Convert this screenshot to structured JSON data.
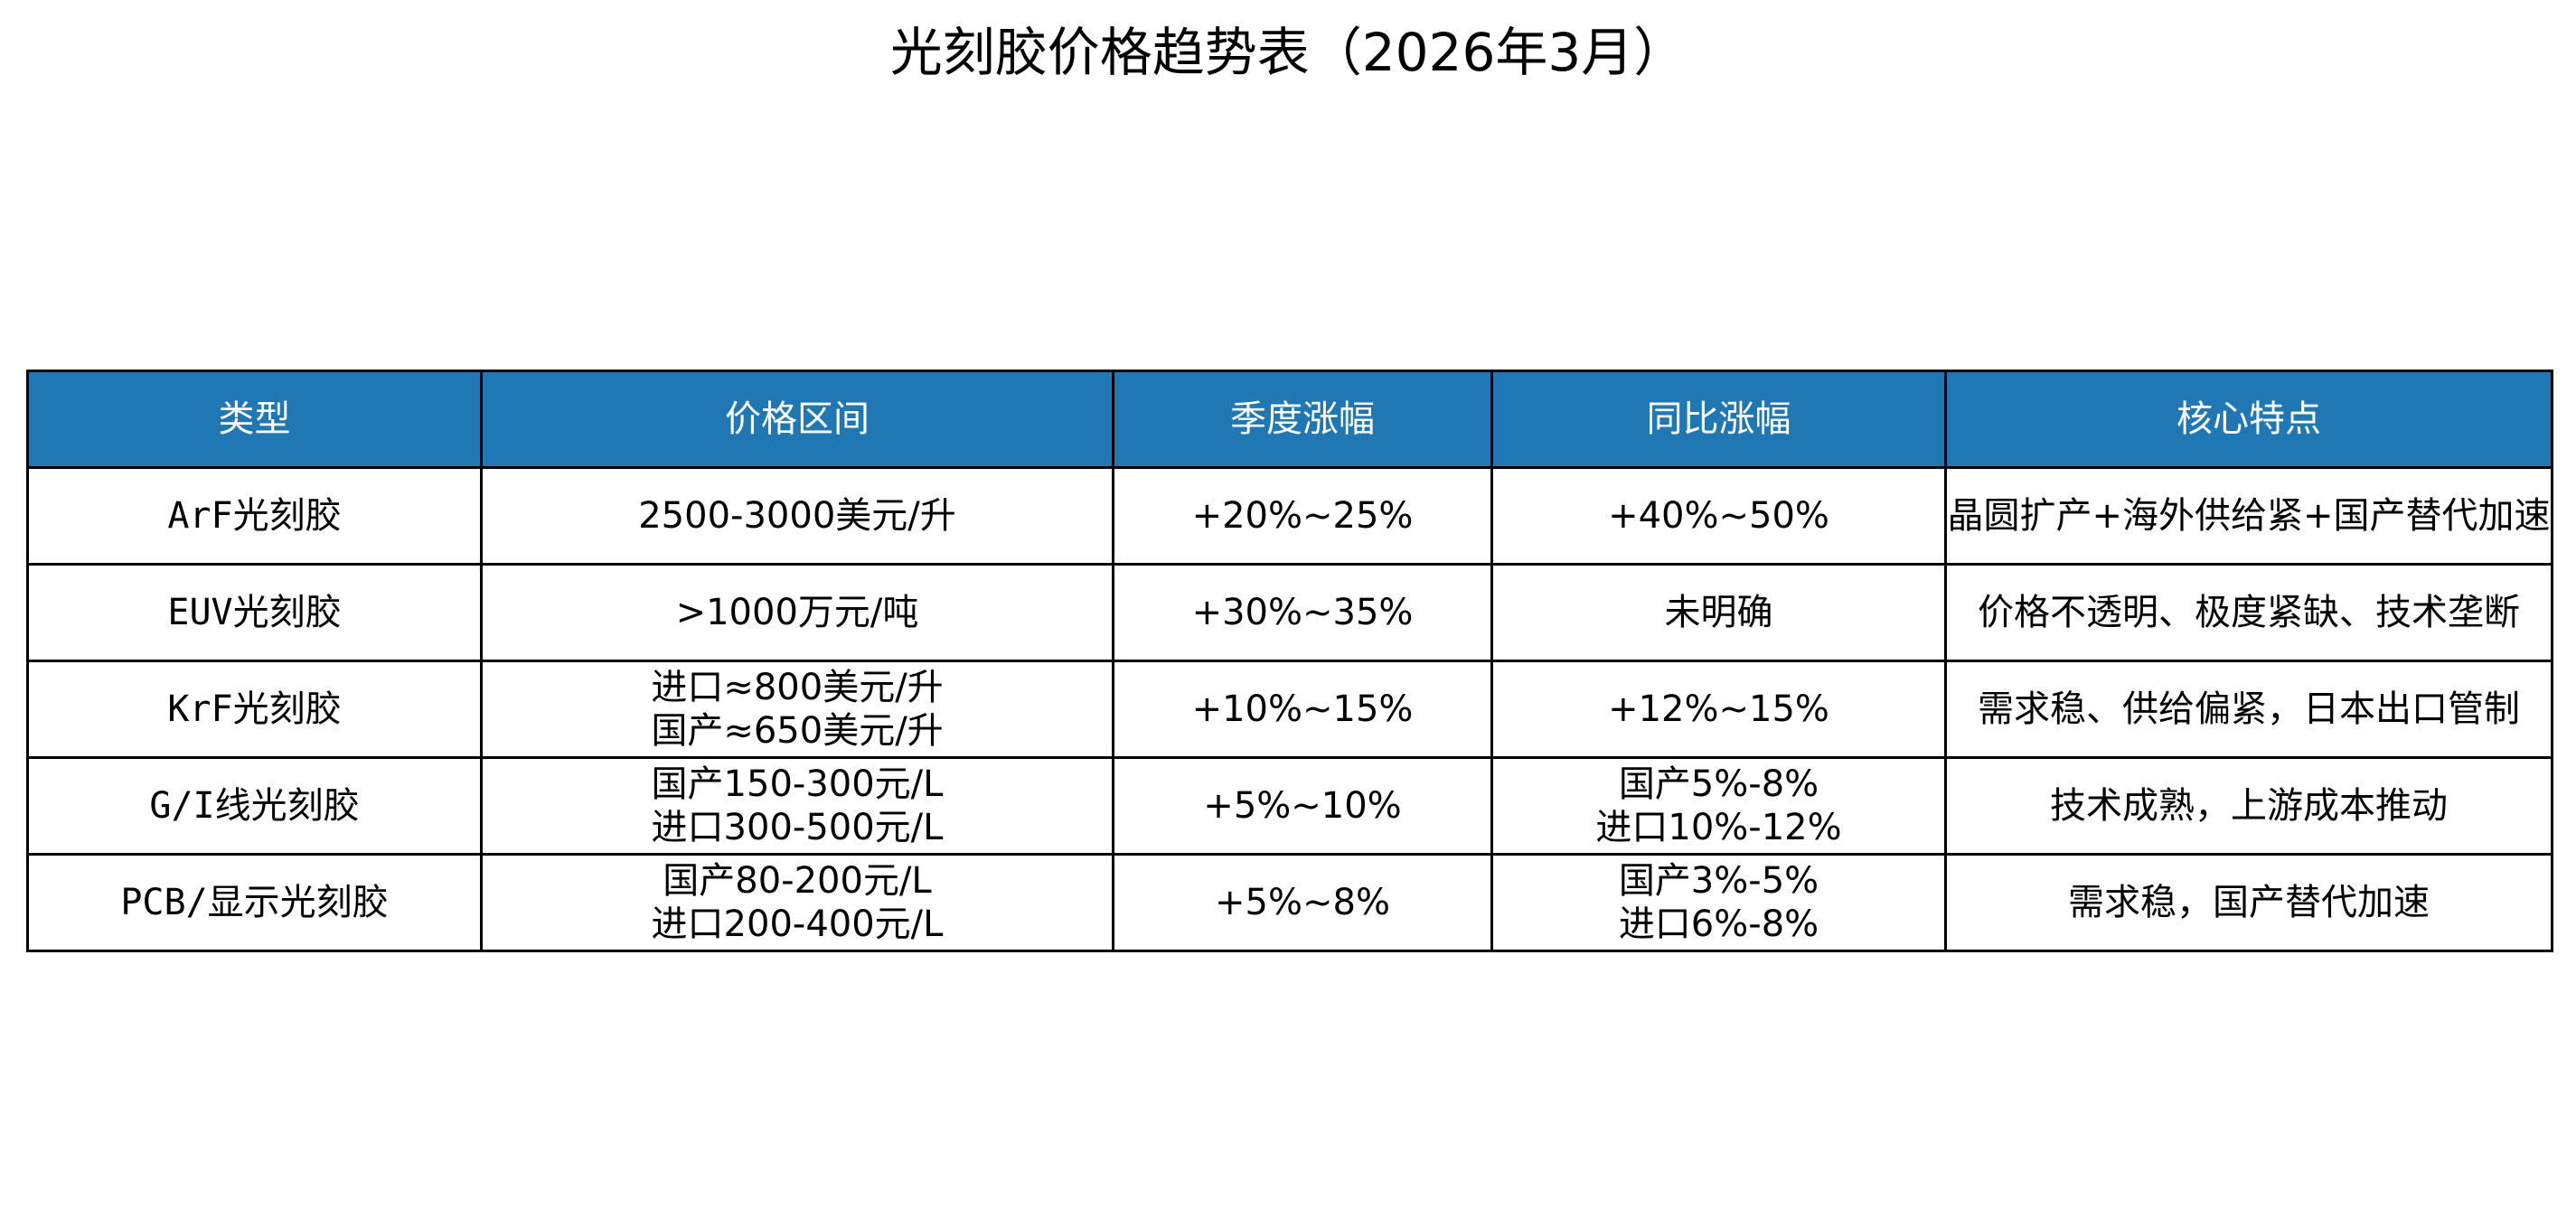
{
  "chart_data": {
    "type": "table",
    "title": "光刻胶价格趋势表（2026年3月）",
    "header_color": "#1f77b4",
    "columns": [
      "类型",
      "价格区间",
      "季度涨幅",
      "同比涨幅",
      "核心特点"
    ],
    "rows": [
      {
        "type": "ArF光刻胶",
        "price": [
          "2500-3000美元/升"
        ],
        "quarterly": [
          "+20%~25%"
        ],
        "yoy": [
          "+40%~50%"
        ],
        "feature": "晶圆扩产+海外供给紧+国产替代加速"
      },
      {
        "type": "EUV光刻胶",
        "price": [
          ">1000万元/吨"
        ],
        "quarterly": [
          "+30%~35%"
        ],
        "yoy": [
          "未明确"
        ],
        "feature": "价格不透明、极度紧缺、技术垄断"
      },
      {
        "type": "KrF光刻胶",
        "price": [
          "进口≈800美元/升",
          "国产≈650美元/升"
        ],
        "quarterly": [
          "+10%~15%"
        ],
        "yoy": [
          "+12%~15%"
        ],
        "feature": "需求稳、供给偏紧，日本出口管制"
      },
      {
        "type": "G/I线光刻胶",
        "price": [
          "国产150-300元/L",
          "进口300-500元/L"
        ],
        "quarterly": [
          "+5%~10%"
        ],
        "yoy": [
          "国产5%-8%",
          "进口10%-12%"
        ],
        "feature": "技术成熟，上游成本推动"
      },
      {
        "type": "PCB/显示光刻胶",
        "price": [
          "国产80-200元/L",
          "进口200-400元/L"
        ],
        "quarterly": [
          "+5%~8%"
        ],
        "yoy": [
          "国产3%-5%",
          "进口6%-8%"
        ],
        "feature": "需求稳，国产替代加速"
      }
    ]
  }
}
